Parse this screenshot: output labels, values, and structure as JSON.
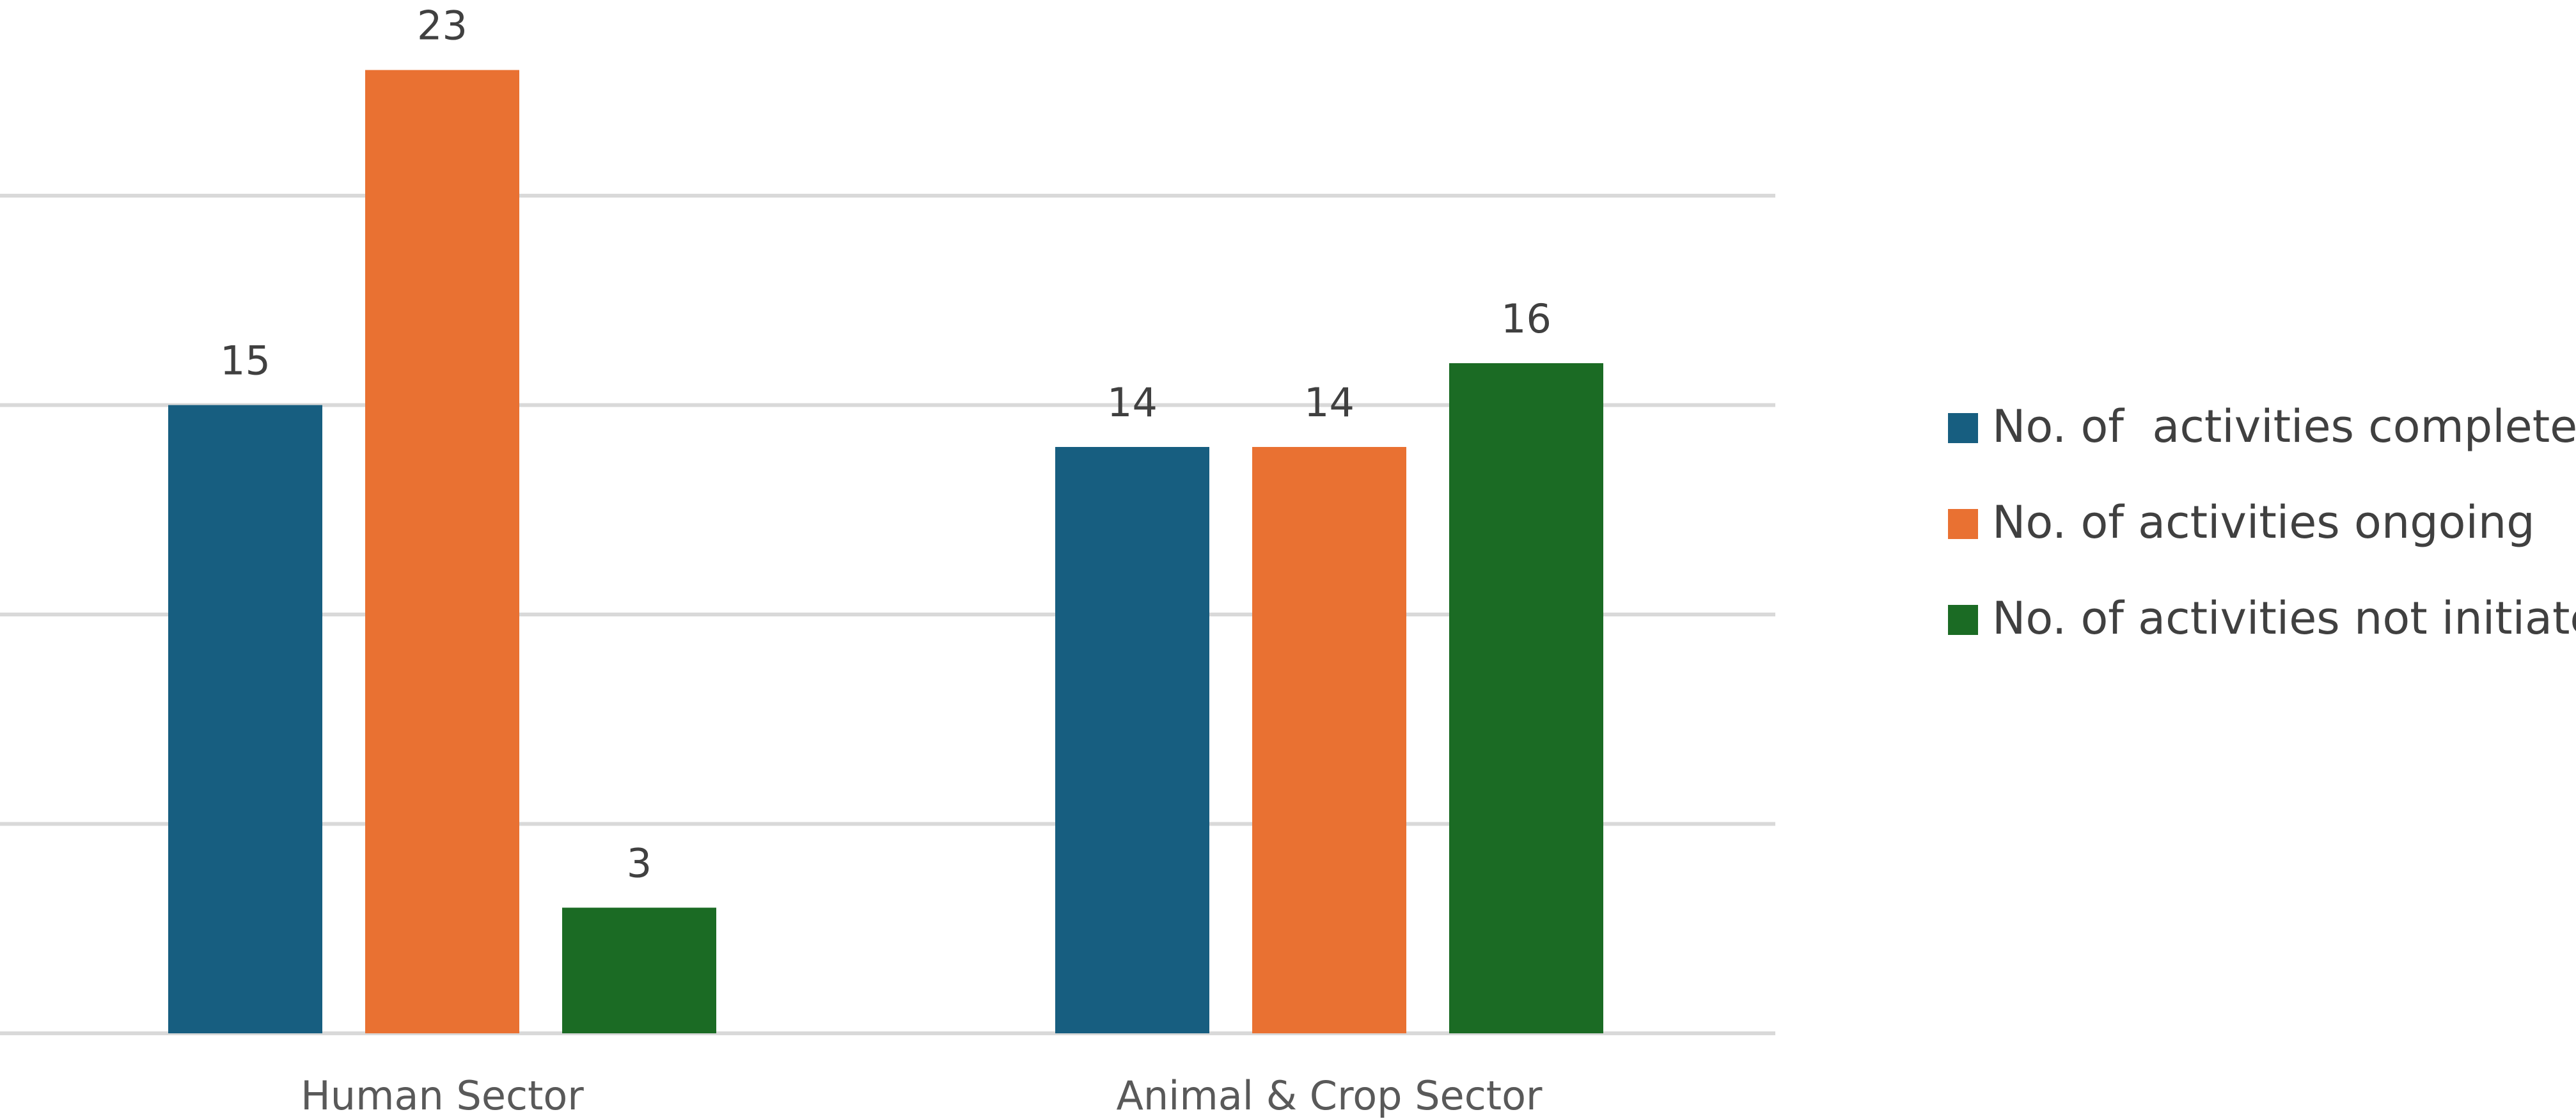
{
  "chart_data": {
    "type": "bar",
    "categories": [
      "Human Sector",
      "Animal & Crop Sector"
    ],
    "series": [
      {
        "name": "No. of  activities completed",
        "values": [
          15,
          14
        ],
        "color": "#175e80"
      },
      {
        "name": "No. of activities ongoing",
        "values": [
          23,
          14
        ],
        "color": "#e97132"
      },
      {
        "name": "No. of activities not initiated",
        "values": [
          3,
          16
        ],
        "color": "#1b6b24"
      }
    ],
    "title": "",
    "xlabel": "",
    "ylabel": "",
    "ylim": [
      0,
      25
    ],
    "y_gridlines": [
      0,
      5,
      10,
      15,
      20
    ],
    "y_tick_labels_shown": false,
    "grid": true,
    "data_labels": true,
    "legend_position": "right",
    "colors": {
      "gridline": "#d9d9d9",
      "data_label": "#404040",
      "category_label": "#595959"
    }
  }
}
